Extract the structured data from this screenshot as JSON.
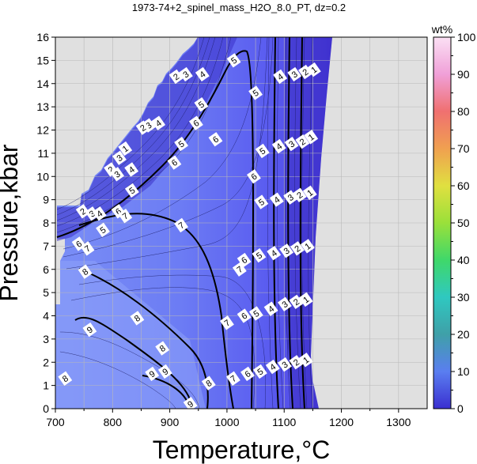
{
  "chart_data": {
    "type": "heatmap",
    "title": "1973-74+2_spinel_mass_H2O_8.0_PT, dz=0.2",
    "xlabel": "Temperature,°C",
    "ylabel": "Pressure,kbar",
    "xlim": [
      700,
      1350
    ],
    "ylim": [
      0,
      16
    ],
    "x_ticks": [
      700,
      800,
      900,
      1000,
      1100,
      1200,
      1300
    ],
    "y_ticks": [
      0,
      1,
      2,
      3,
      4,
      5,
      6,
      7,
      8,
      9,
      10,
      11,
      12,
      13,
      14,
      15,
      16
    ],
    "grid": true,
    "colorbar": {
      "label": "wt%",
      "range": [
        0,
        100
      ],
      "ticks": [
        0,
        10,
        20,
        30,
        40,
        50,
        60,
        70,
        80,
        90,
        100
      ],
      "colors": [
        "#3a2fd0",
        "#5a7ef0",
        "#3fa0a8",
        "#2fc8c0",
        "#3fd86a",
        "#9ae03a",
        "#e0e040",
        "#f0a050",
        "#f07070",
        "#f0a0d8",
        "#fbe0f4"
      ]
    },
    "background_color": "#e0e0e0",
    "field_color": "#6e80f4",
    "contour_labels": [
      {
        "value": "1",
        "x": 1152,
        "y": 14.6
      },
      {
        "value": "2",
        "x": 1137,
        "y": 14.5
      },
      {
        "value": "3",
        "x": 1118,
        "y": 14.4
      },
      {
        "value": "4",
        "x": 1093,
        "y": 14.3
      },
      {
        "value": "5",
        "x": 1050,
        "y": 13.6
      },
      {
        "value": "1",
        "x": 1147,
        "y": 11.7
      },
      {
        "value": "2",
        "x": 1132,
        "y": 11.5
      },
      {
        "value": "3",
        "x": 1113,
        "y": 11.4
      },
      {
        "value": "4",
        "x": 1091,
        "y": 11.3
      },
      {
        "value": "5",
        "x": 1062,
        "y": 11.1
      },
      {
        "value": "1",
        "x": 1145,
        "y": 9.3
      },
      {
        "value": "2",
        "x": 1127,
        "y": 9.2
      },
      {
        "value": "3",
        "x": 1111,
        "y": 9.1
      },
      {
        "value": "4",
        "x": 1087,
        "y": 9.0
      },
      {
        "value": "5",
        "x": 1060,
        "y": 8.9
      },
      {
        "value": "1",
        "x": 1141,
        "y": 7.0
      },
      {
        "value": "2",
        "x": 1123,
        "y": 6.9
      },
      {
        "value": "3",
        "x": 1104,
        "y": 6.8
      },
      {
        "value": "4",
        "x": 1082,
        "y": 6.7
      },
      {
        "value": "5",
        "x": 1056,
        "y": 6.6
      },
      {
        "value": "6",
        "x": 1030,
        "y": 6.4
      },
      {
        "value": "1",
        "x": 1138,
        "y": 4.7
      },
      {
        "value": "2",
        "x": 1121,
        "y": 4.6
      },
      {
        "value": "3",
        "x": 1101,
        "y": 4.5
      },
      {
        "value": "4",
        "x": 1077,
        "y": 4.3
      },
      {
        "value": "5",
        "x": 1051,
        "y": 4.1
      },
      {
        "value": "6",
        "x": 1030,
        "y": 4.0
      },
      {
        "value": "1",
        "x": 1138,
        "y": 2.1
      },
      {
        "value": "2",
        "x": 1121,
        "y": 2.0
      },
      {
        "value": "3",
        "x": 1101,
        "y": 1.9
      },
      {
        "value": "4",
        "x": 1080,
        "y": 1.8
      },
      {
        "value": "5",
        "x": 1058,
        "y": 1.6
      },
      {
        "value": "6",
        "x": 1036,
        "y": 1.5
      },
      {
        "value": "7",
        "x": 1011,
        "y": 1.3
      },
      {
        "value": "7",
        "x": 1000,
        "y": 3.7
      },
      {
        "value": "7",
        "x": 1022,
        "y": 6.0
      },
      {
        "value": "7",
        "x": 920,
        "y": 7.9
      },
      {
        "value": "6",
        "x": 1047,
        "y": 10.0
      },
      {
        "value": "6",
        "x": 980,
        "y": 11.6
      },
      {
        "value": "5",
        "x": 920,
        "y": 11.4
      },
      {
        "value": "6",
        "x": 908,
        "y": 10.6
      },
      {
        "value": "5",
        "x": 1012,
        "y": 15.0
      },
      {
        "value": "5",
        "x": 955,
        "y": 13.1
      },
      {
        "value": "6",
        "x": 946,
        "y": 12.3
      },
      {
        "value": "4",
        "x": 957,
        "y": 14.4
      },
      {
        "value": "3",
        "x": 928,
        "y": 14.4
      },
      {
        "value": "2",
        "x": 911,
        "y": 14.3
      },
      {
        "value": "4",
        "x": 880,
        "y": 12.3
      },
      {
        "value": "3",
        "x": 863,
        "y": 12.2
      },
      {
        "value": "2",
        "x": 853,
        "y": 12.1
      },
      {
        "value": "1",
        "x": 822,
        "y": 11.2
      },
      {
        "value": "3",
        "x": 812,
        "y": 10.8
      },
      {
        "value": "4",
        "x": 833,
        "y": 10.3
      },
      {
        "value": "2",
        "x": 797,
        "y": 10.3
      },
      {
        "value": "3",
        "x": 808,
        "y": 10.1
      },
      {
        "value": "5",
        "x": 834,
        "y": 9.4
      },
      {
        "value": "6",
        "x": 810,
        "y": 8.5
      },
      {
        "value": "7",
        "x": 822,
        "y": 8.3
      },
      {
        "value": "2",
        "x": 748,
        "y": 8.5
      },
      {
        "value": "3",
        "x": 764,
        "y": 8.4
      },
      {
        "value": "4",
        "x": 777,
        "y": 8.4
      },
      {
        "value": "5",
        "x": 783,
        "y": 7.7
      },
      {
        "value": "6",
        "x": 741,
        "y": 7.1
      },
      {
        "value": "7",
        "x": 756,
        "y": 6.9
      },
      {
        "value": "8",
        "x": 752,
        "y": 5.9
      },
      {
        "value": "8",
        "x": 843,
        "y": 3.9
      },
      {
        "value": "8",
        "x": 887,
        "y": 2.6
      },
      {
        "value": "8",
        "x": 968,
        "y": 1.1
      },
      {
        "value": "9",
        "x": 760,
        "y": 3.4
      },
      {
        "value": "9",
        "x": 892,
        "y": 1.6
      },
      {
        "value": "9",
        "x": 869,
        "y": 1.5
      },
      {
        "value": "9",
        "x": 936,
        "y": 0.2
      },
      {
        "value": "8",
        "x": 717,
        "y": 1.3
      }
    ]
  }
}
